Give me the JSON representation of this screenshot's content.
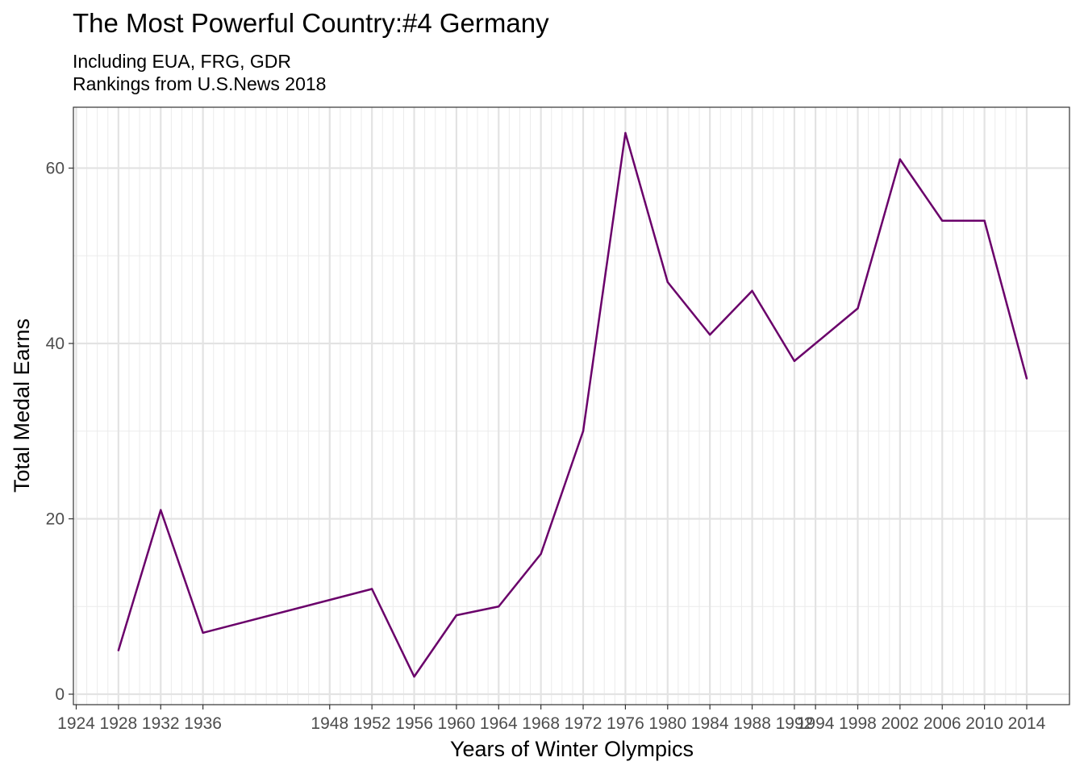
{
  "chart_data": {
    "type": "line",
    "title": "The Most Powerful Country:#4 Germany",
    "subtitle": [
      "Including EUA, FRG, GDR",
      "Rankings from U.S.News 2018"
    ],
    "xlabel": "Years of Winter Olympics",
    "ylabel": "Total Medal Earns",
    "x": [
      1928,
      1932,
      1936,
      1952,
      1956,
      1960,
      1964,
      1968,
      1972,
      1976,
      1980,
      1984,
      1988,
      1992,
      1998,
      2002,
      2006,
      2010,
      2014
    ],
    "y": [
      5,
      21,
      7,
      12,
      2,
      9,
      10,
      16,
      30,
      64,
      47,
      41,
      46,
      38,
      44,
      61,
      54,
      54,
      36
    ],
    "x_ticks": [
      1924,
      1928,
      1932,
      1936,
      1948,
      1952,
      1956,
      1960,
      1964,
      1968,
      1972,
      1976,
      1980,
      1984,
      1988,
      1992,
      1994,
      1998,
      2002,
      2006,
      2010,
      2014
    ],
    "y_ticks": [
      0,
      20,
      40,
      60
    ],
    "xlim": [
      1924,
      2014
    ],
    "ylim": [
      0,
      64
    ],
    "line_color": "#6a006a",
    "grid": true
  }
}
